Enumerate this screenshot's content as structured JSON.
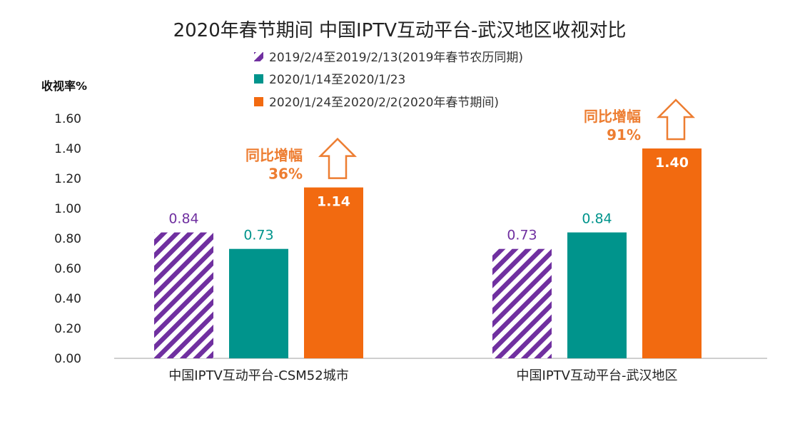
{
  "chart_data": {
    "type": "bar",
    "title": "2020年春节期间  中国IPTV互动平台-武汉地区收视对比",
    "ylabel": "收视率%",
    "xlabel": "",
    "ylim": [
      0,
      1.6
    ],
    "yticks": [
      "0.00",
      "0.20",
      "0.40",
      "0.60",
      "0.80",
      "1.00",
      "1.20",
      "1.40",
      "1.60"
    ],
    "grid": false,
    "legend_position": "top",
    "categories": [
      "中国IPTV互动平台-CSM52城市",
      "中国IPTV互动平台-武汉地区"
    ],
    "series": [
      {
        "name": "2019/2/4至2019/2/13(2019年春节农历同期)",
        "values": [
          0.84,
          0.73
        ],
        "labels": [
          "0.84",
          "0.73"
        ],
        "color": "#7030A0",
        "pattern": "diagonal-stripes"
      },
      {
        "name": "2020/1/14至2020/1/23",
        "values": [
          0.73,
          0.84
        ],
        "labels": [
          "0.73",
          "0.84"
        ],
        "color": "#00948C",
        "pattern": "solid"
      },
      {
        "name": "2020/1/24至2020/2/2(2020年春节期间)",
        "values": [
          1.14,
          1.4
        ],
        "labels": [
          "1.14",
          "1.40"
        ],
        "color": "#F26A10",
        "pattern": "solid"
      }
    ],
    "annotations": [
      {
        "category": "中国IPTV互动平台-CSM52城市",
        "line1": "同比增幅",
        "line2": "36%"
      },
      {
        "category": "中国IPTV互动平台-武汉地区",
        "line1": "同比增幅",
        "line2": "91%"
      }
    ],
    "colors": {
      "annotation": "#ED7D31",
      "axis": "#BFBFBF"
    }
  }
}
